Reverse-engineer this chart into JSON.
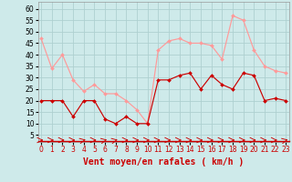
{
  "x": [
    0,
    1,
    2,
    3,
    4,
    5,
    6,
    7,
    8,
    9,
    10,
    11,
    12,
    13,
    14,
    15,
    16,
    17,
    18,
    19,
    20,
    21,
    22,
    23
  ],
  "vent_moyen": [
    20,
    20,
    20,
    13,
    20,
    20,
    12,
    10,
    13,
    10,
    10,
    29,
    29,
    31,
    32,
    25,
    31,
    27,
    25,
    32,
    31,
    20,
    21,
    20
  ],
  "rafales": [
    47,
    34,
    40,
    29,
    24,
    27,
    23,
    23,
    20,
    16,
    10,
    42,
    46,
    47,
    45,
    45,
    44,
    38,
    57,
    55,
    42,
    35,
    33,
    32
  ],
  "bg_color": "#ceeaea",
  "grid_color": "#aed0d0",
  "line_color_moyen": "#cc0000",
  "line_color_rafales": "#ff9999",
  "arrow_color": "#cc0000",
  "xlabel": "Vent moyen/en rafales ( km/h )",
  "ylabel_ticks": [
    5,
    10,
    15,
    20,
    25,
    30,
    35,
    40,
    45,
    50,
    55,
    60
  ],
  "ylim": [
    2,
    63
  ],
  "xlim": [
    -0.3,
    23.3
  ],
  "xlabel_color": "#cc0000",
  "xlabel_fontsize": 7.0,
  "tick_fontsize": 5.5,
  "arrow_directions": [
    0,
    0,
    0,
    0,
    45,
    0,
    45,
    45,
    0,
    0,
    0,
    0,
    0,
    0,
    0,
    0,
    0,
    0,
    0,
    0,
    0,
    0,
    0,
    45
  ]
}
